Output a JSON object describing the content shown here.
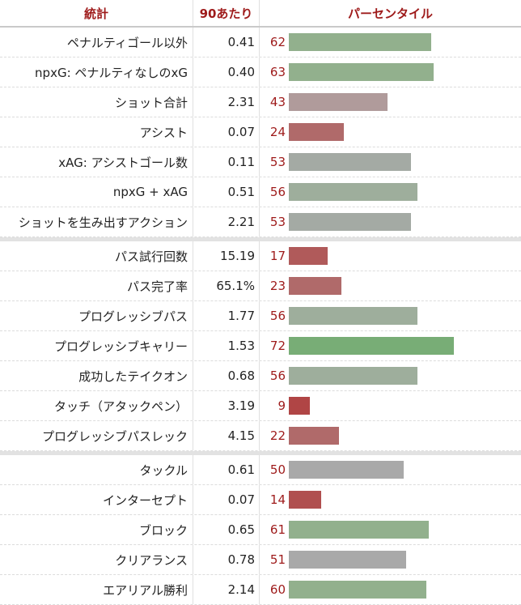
{
  "header": {
    "stat": "統計",
    "per90": "90あたり",
    "percentile": "パーセンタイル"
  },
  "colors": {
    "header_text": "#9e1a1a",
    "pct_text": "#9e1a1a"
  },
  "groups": [
    {
      "rows": [
        {
          "label": "ペナルティゴール以外",
          "value": "0.41",
          "pct": 62,
          "color": "#92b08d"
        },
        {
          "label": "npxG: ペナルティなしのxG",
          "value": "0.40",
          "pct": 63,
          "color": "#92b08d"
        },
        {
          "label": "ショット合計",
          "value": "2.31",
          "pct": 43,
          "color": "#b09b9b"
        },
        {
          "label": "アシスト",
          "value": "0.07",
          "pct": 24,
          "color": "#b06a6a"
        },
        {
          "label": "xAG: アシストゴール数",
          "value": "0.11",
          "pct": 53,
          "color": "#a4aaa4"
        },
        {
          "label": "npxG + xAG",
          "value": "0.51",
          "pct": 56,
          "color": "#9eae9c"
        },
        {
          "label": "ショットを生み出すアクション",
          "value": "2.21",
          "pct": 53,
          "color": "#a4aaa4"
        }
      ]
    },
    {
      "rows": [
        {
          "label": "パス試行回数",
          "value": "15.19",
          "pct": 17,
          "color": "#b05a5a"
        },
        {
          "label": "パス完了率",
          "value": "65.1%",
          "pct": 23,
          "color": "#b06a6a"
        },
        {
          "label": "プログレッシブパス",
          "value": "1.77",
          "pct": 56,
          "color": "#9eae9c"
        },
        {
          "label": "プログレッシブキャリー",
          "value": "1.53",
          "pct": 72,
          "color": "#78ad76"
        },
        {
          "label": "成功したテイクオン",
          "value": "0.68",
          "pct": 56,
          "color": "#9eae9c"
        },
        {
          "label": "タッチ（アタックペン）",
          "value": "3.19",
          "pct": 9,
          "color": "#b04545"
        },
        {
          "label": "プログレッシブパスレック",
          "value": "4.15",
          "pct": 22,
          "color": "#b06a6a"
        }
      ]
    },
    {
      "rows": [
        {
          "label": "タックル",
          "value": "0.61",
          "pct": 50,
          "color": "#a9a9a9"
        },
        {
          "label": "インターセプト",
          "value": "0.07",
          "pct": 14,
          "color": "#b04f4f"
        },
        {
          "label": "ブロック",
          "value": "0.65",
          "pct": 61,
          "color": "#92b08d"
        },
        {
          "label": "クリアランス",
          "value": "0.78",
          "pct": 51,
          "color": "#a9a9a9"
        },
        {
          "label": "エアリアル勝利",
          "value": "2.14",
          "pct": 60,
          "color": "#92b08d"
        }
      ]
    }
  ]
}
